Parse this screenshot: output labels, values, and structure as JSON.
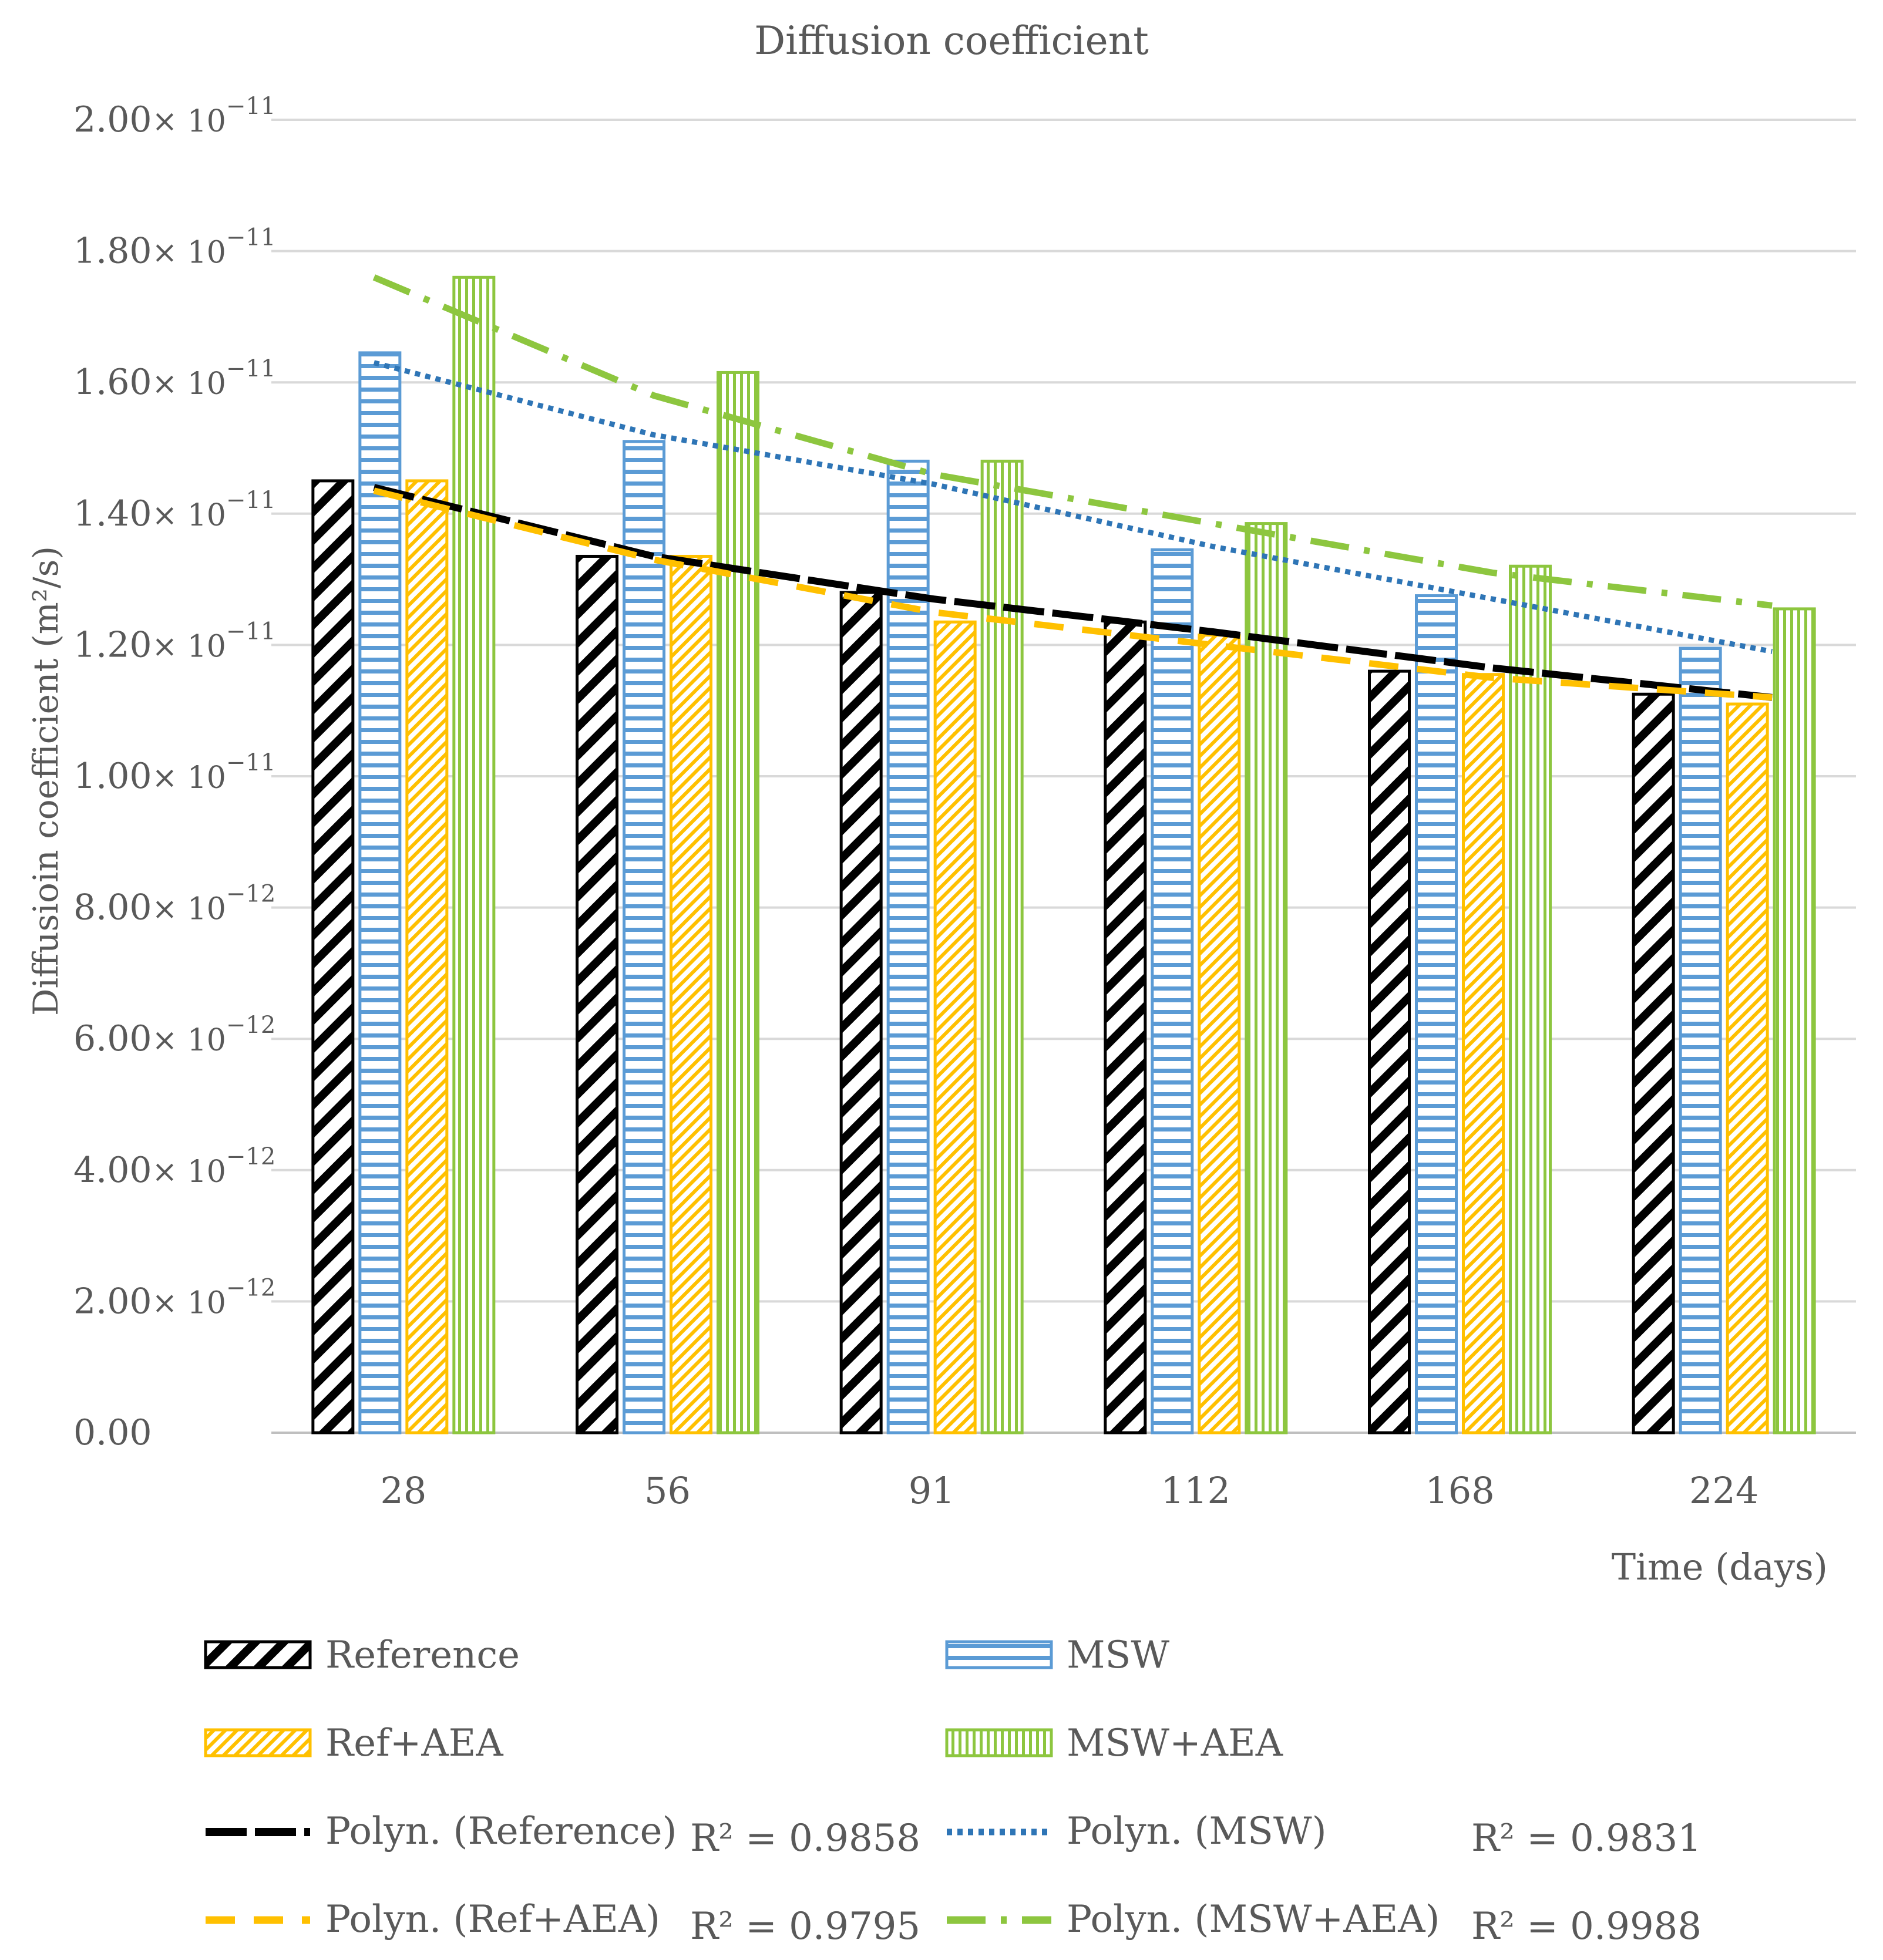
{
  "chart_data": {
    "type": "bar",
    "title": "Diffusion coefficient",
    "xlabel": "Time (days)",
    "ylabel": "Diffusioin coefficient (m²/s)",
    "ylim": [
      0,
      2e-11
    ],
    "grid": true,
    "categories": [
      "28",
      "56",
      "91",
      "112",
      "168",
      "224"
    ],
    "y_ticks": [
      {
        "value": 0,
        "mantissa": "0.00",
        "exponent": ""
      },
      {
        "value": 2e-12,
        "mantissa": "2.00",
        "exponent": "−12"
      },
      {
        "value": 4e-12,
        "mantissa": "4.00",
        "exponent": "−12"
      },
      {
        "value": 6e-12,
        "mantissa": "6.00",
        "exponent": "−12"
      },
      {
        "value": 8e-12,
        "mantissa": "8.00",
        "exponent": "−12"
      },
      {
        "value": 1e-11,
        "mantissa": "1.00",
        "exponent": "−11"
      },
      {
        "value": 1.2e-11,
        "mantissa": "1.20",
        "exponent": "−11"
      },
      {
        "value": 1.4e-11,
        "mantissa": "1.40",
        "exponent": "−11"
      },
      {
        "value": 1.6e-11,
        "mantissa": "1.60",
        "exponent": "−11"
      },
      {
        "value": 1.8e-11,
        "mantissa": "1.80",
        "exponent": "−11"
      },
      {
        "value": 2e-11,
        "mantissa": "2.00",
        "exponent": "−11"
      }
    ],
    "series": [
      {
        "name": "Reference",
        "values": [
          1.45e-11,
          1.335e-11,
          1.28e-11,
          1.235e-11,
          1.16e-11,
          1.125e-11
        ],
        "color": "#000000",
        "pattern": "diagonal"
      },
      {
        "name": "MSW",
        "values": [
          1.645e-11,
          1.51e-11,
          1.48e-11,
          1.345e-11,
          1.275e-11,
          1.195e-11
        ],
        "color": "#5b9bd5",
        "pattern": "horizontal"
      },
      {
        "name": "Ref+AEA",
        "values": [
          1.45e-11,
          1.335e-11,
          1.235e-11,
          1.215e-11,
          1.155e-11,
          1.11e-11
        ],
        "color": "#ffc000",
        "pattern": "diagonal-fine"
      },
      {
        "name": "MSW+AEA",
        "values": [
          1.76e-11,
          1.615e-11,
          1.48e-11,
          1.385e-11,
          1.32e-11,
          1.255e-11
        ],
        "color": "#8dc63f",
        "pattern": "vertical"
      }
    ],
    "trendlines": [
      {
        "name": "Polyn. (Reference)",
        "r2": "R² = 0.9858",
        "color": "#000000",
        "style": "long-dash",
        "values": [
          1.44e-11,
          1.335e-11,
          1.27e-11,
          1.22e-11,
          1.165e-11,
          1.12e-11
        ]
      },
      {
        "name": "Polyn. (MSW)",
        "r2": "R² = 0.9831",
        "color": "#2e75b6",
        "style": "dotted",
        "values": [
          1.63e-11,
          1.52e-11,
          1.445e-11,
          1.35e-11,
          1.27e-11,
          1.19e-11
        ]
      },
      {
        "name": "Polyn. (Ref+AEA)",
        "r2": "R² = 0.9795",
        "color": "#ffc000",
        "style": "dashed",
        "values": [
          1.435e-11,
          1.33e-11,
          1.25e-11,
          1.2e-11,
          1.15e-11,
          1.12e-11
        ]
      },
      {
        "name": "Polyn. (MSW+AEA)",
        "r2": "R² = 0.9988",
        "color": "#8dc63f",
        "style": "dash-dot",
        "values": [
          1.76e-11,
          1.58e-11,
          1.46e-11,
          1.385e-11,
          1.31e-11,
          1.26e-11
        ]
      }
    ]
  }
}
